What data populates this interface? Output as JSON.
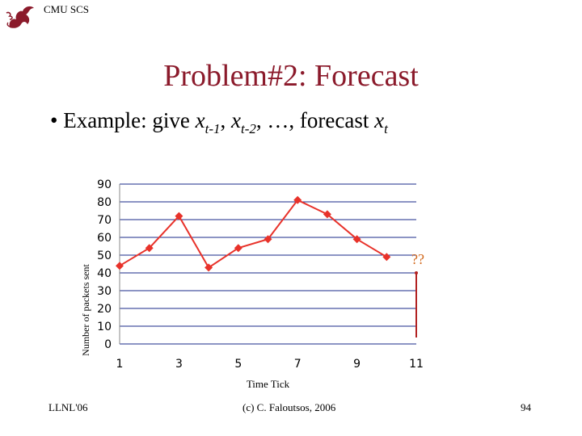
{
  "header": {
    "brand": "CMU SCS",
    "logo_icon": "griffin-logo-icon"
  },
  "slide": {
    "title": "Problem#2: Forecast",
    "bullet_prefix": "• Example: give ",
    "var1": "x",
    "sub1": "t-1",
    "sep1": ", ",
    "var2": "x",
    "sub2": "t-2",
    "sep2": ", …, forecast ",
    "var3": "x",
    "sub3": "t"
  },
  "colors": {
    "title": "#8b1a2b",
    "series": "#e8322a",
    "marker": "#e8322a",
    "grid": "#1a2a8a",
    "annotation": "#d2691e"
  },
  "chart_data": {
    "type": "line",
    "x": [
      1,
      2,
      3,
      4,
      5,
      6,
      7,
      8,
      9,
      10
    ],
    "series": [
      {
        "values": [
          44,
          54,
          72,
          43,
          54,
          59,
          81,
          73,
          59,
          49
        ]
      }
    ],
    "xlabel": "Time Tick",
    "ylabel": "Number of packets sent",
    "xlim": [
      1,
      11
    ],
    "ylim": [
      0,
      90
    ],
    "xticks": [
      "1",
      "3",
      "5",
      "7",
      "9",
      "11"
    ],
    "yticks": [
      "0",
      "10",
      "20",
      "30",
      "40",
      "50",
      "60",
      "70",
      "80",
      "90"
    ],
    "grid": true,
    "annotation": {
      "text": "??",
      "x": 11
    }
  },
  "footer": {
    "left": "LLNL'06",
    "center": "(c) C. Faloutsos, 2006",
    "page": "94"
  }
}
